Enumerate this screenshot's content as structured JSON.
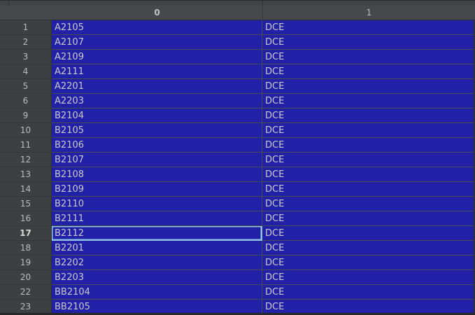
{
  "table": {
    "columns": [
      "0",
      "1"
    ],
    "rows": [
      {
        "num": "1",
        "c0": "A2105",
        "c1": "DCE"
      },
      {
        "num": "2",
        "c0": "A2107",
        "c1": "DCE"
      },
      {
        "num": "3",
        "c0": "A2109",
        "c1": "DCE"
      },
      {
        "num": "4",
        "c0": "A2111",
        "c1": "DCE"
      },
      {
        "num": "5",
        "c0": "A2201",
        "c1": "DCE"
      },
      {
        "num": "6",
        "c0": "A2203",
        "c1": "DCE"
      },
      {
        "num": "9",
        "c0": "B2104",
        "c1": "DCE"
      },
      {
        "num": "10",
        "c0": "B2105",
        "c1": "DCE"
      },
      {
        "num": "11",
        "c0": "B2106",
        "c1": "DCE"
      },
      {
        "num": "12",
        "c0": "B2107",
        "c1": "DCE"
      },
      {
        "num": "13",
        "c0": "B2108",
        "c1": "DCE"
      },
      {
        "num": "14",
        "c0": "B2109",
        "c1": "DCE"
      },
      {
        "num": "15",
        "c0": "B2110",
        "c1": "DCE"
      },
      {
        "num": "16",
        "c0": "B2111",
        "c1": "DCE"
      },
      {
        "num": "17",
        "c0": "B2112",
        "c1": "DCE"
      },
      {
        "num": "18",
        "c0": "B2201",
        "c1": "DCE"
      },
      {
        "num": "19",
        "c0": "B2202",
        "c1": "DCE"
      },
      {
        "num": "20",
        "c0": "B2203",
        "c1": "DCE"
      },
      {
        "num": "22",
        "c0": "BB2104",
        "c1": "DCE"
      },
      {
        "num": "23",
        "c0": "BB2105",
        "c1": "DCE"
      }
    ],
    "selection": {
      "all_rows_selected": true,
      "focused_row": "17",
      "focused_column_index": 0,
      "focused_value": "B2112"
    }
  },
  "colors": {
    "selection_blue": "#2021a6",
    "header_bg": "#46494b",
    "gutter_bg": "#3d4042",
    "grid_line": "#4a4d4f",
    "focus_border": "#93c3e4",
    "cell_text": "#c9c9c9"
  }
}
